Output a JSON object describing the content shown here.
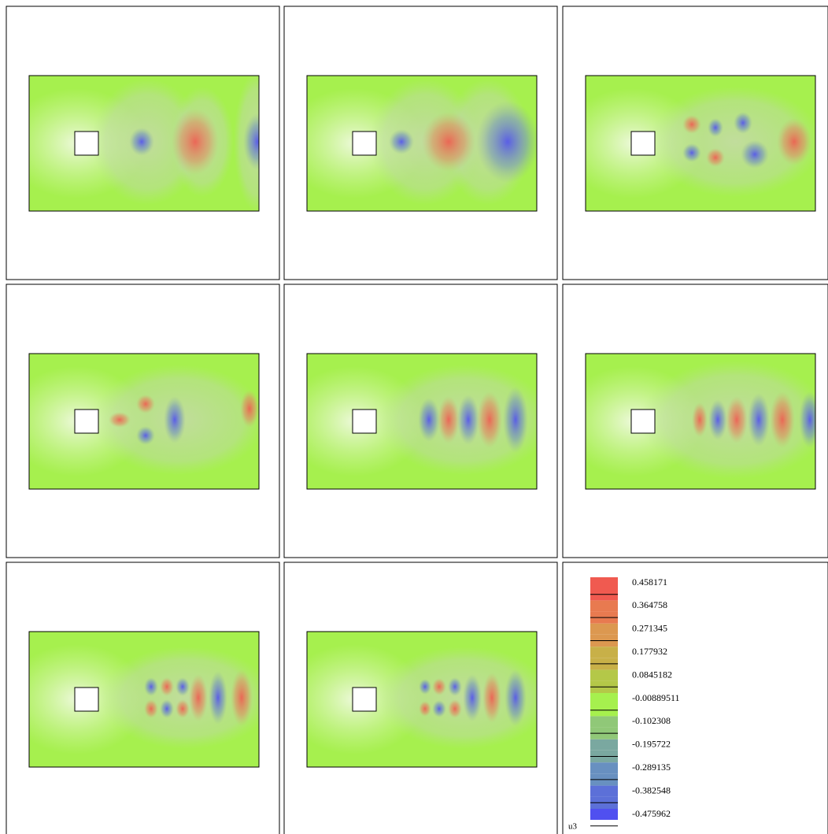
{
  "legend": {
    "levels": [
      "0.458171",
      "0.364758",
      "0.271345",
      "0.177932",
      "0.0845182",
      "-0.00889511",
      "-0.102308",
      "-0.195722",
      "-0.289135",
      "-0.382548",
      "-0.475962"
    ],
    "variable": "u3"
  }
}
